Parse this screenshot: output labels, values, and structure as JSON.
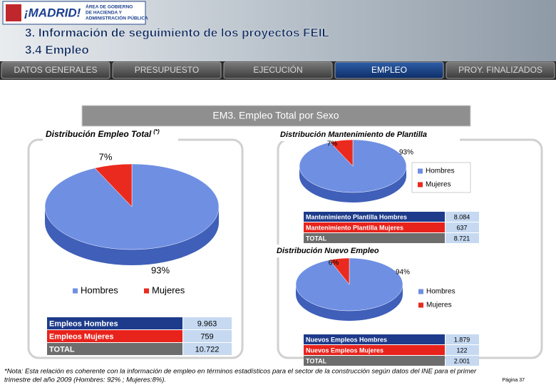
{
  "header": {
    "logo": "¡MADRID!",
    "department": [
      "ÁREA DE GOBIERNO",
      "DE HACIENDA Y",
      "ADMINISTRACIÓN PÚBLICA"
    ],
    "title": [
      "3. Información de seguimiento de los proyectos FEIL",
      "3.4 Empleo"
    ]
  },
  "tabs": [
    "DATOS GENERALES",
    "PRESUPUESTO",
    "EJECUCIÓN",
    "EMPLEO",
    "PROY. FINALIZADOS"
  ],
  "section_title": "EM3. Empleo Total por Sexo",
  "chart_data": [
    {
      "type": "pie",
      "title": "Distribución Empleo Total",
      "title_note": "(*)",
      "categories": [
        "Hombres",
        "Mujeres"
      ],
      "values": [
        93,
        7
      ],
      "value_labels": [
        "93%",
        "7%"
      ],
      "colors": [
        "#6f8fe3",
        "#ea2a1f"
      ]
    },
    {
      "type": "pie",
      "title": "Distribución Mantenimiento de Plantilla",
      "categories": [
        "Hombres",
        "Mujeres"
      ],
      "values": [
        93,
        7
      ],
      "value_labels": [
        "93%",
        "7%"
      ],
      "colors": [
        "#6f8fe3",
        "#ea2a1f"
      ]
    },
    {
      "type": "pie",
      "title": "Distribución Nuevo Empleo",
      "categories": [
        "Hombres",
        "Mujeres"
      ],
      "values": [
        94,
        6
      ],
      "value_labels": [
        "94%",
        "6%"
      ],
      "colors": [
        "#6f8fe3",
        "#ea2a1f"
      ]
    }
  ],
  "tables": [
    {
      "rows": [
        [
          "Empleos Hombres",
          "9.963"
        ],
        [
          "Empleos Mujeres",
          "759"
        ],
        [
          "TOTAL",
          "10.722"
        ]
      ]
    },
    {
      "rows": [
        [
          "Mantenimiento Plantilla Hombres",
          "8.084"
        ],
        [
          "Mantenimiento Plantilla Mujeres",
          "637"
        ],
        [
          "TOTAL",
          "8.721"
        ]
      ]
    },
    {
      "rows": [
        [
          "Nuevos Empleos Hombres",
          "1.879"
        ],
        [
          "Nuevos Empleos Mujeres",
          "122"
        ],
        [
          "TOTAL",
          "2.001"
        ]
      ]
    }
  ],
  "footnote": [
    "*Nota: Esta relación es coherente con la información de empleo en términos estadísticos para el sector de la construcción según datos del INE para el primer",
    "trimestre del año 2009 (Hombres: 92% ; Mujeres:8%)."
  ],
  "page": "Página 37"
}
